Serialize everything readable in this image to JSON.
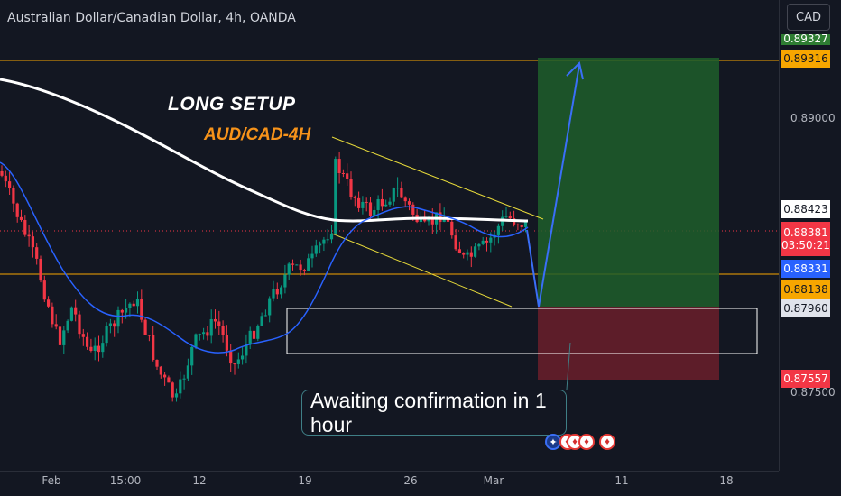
{
  "header": {
    "title": "Australian Dollar/Canadian Dollar, 4h, OANDA"
  },
  "currency_button": "CAD",
  "annotations": {
    "long_setup": "LONG SETUP",
    "pair": "AUD/CAD-4H",
    "callout": "Awaiting confirmation in 1 hour"
  },
  "price_axis": {
    "ticks": [
      "0.89000",
      "0.87500"
    ],
    "labels": {
      "top_partial": "0.89327",
      "target": "0.89316",
      "ma200": "0.88423",
      "last": "0.88381",
      "countdown": "03:50:21",
      "ma20": "0.88331",
      "support": "0.88138",
      "entry": "0.87960",
      "stop": "0.87557"
    }
  },
  "time_axis": [
    "Feb",
    "15:00",
    "12",
    "19",
    "26",
    "Mar",
    "11",
    "18"
  ],
  "colors": {
    "background": "#131722",
    "up_candle": "#089981",
    "down_candle": "#f23645",
    "ma200": "#ffffff",
    "ma20": "#2962ff",
    "horizontal_lines": "#f7a600",
    "channel": "#f0e130",
    "profit_zone": "#1e5e2a",
    "loss_zone": "#6b1f2a",
    "projection_arrow": "#3a6ff7"
  },
  "flags": [
    "australia-flag",
    "canada-flag",
    "canada-flag",
    "canada-flag",
    "canada-flag"
  ]
}
